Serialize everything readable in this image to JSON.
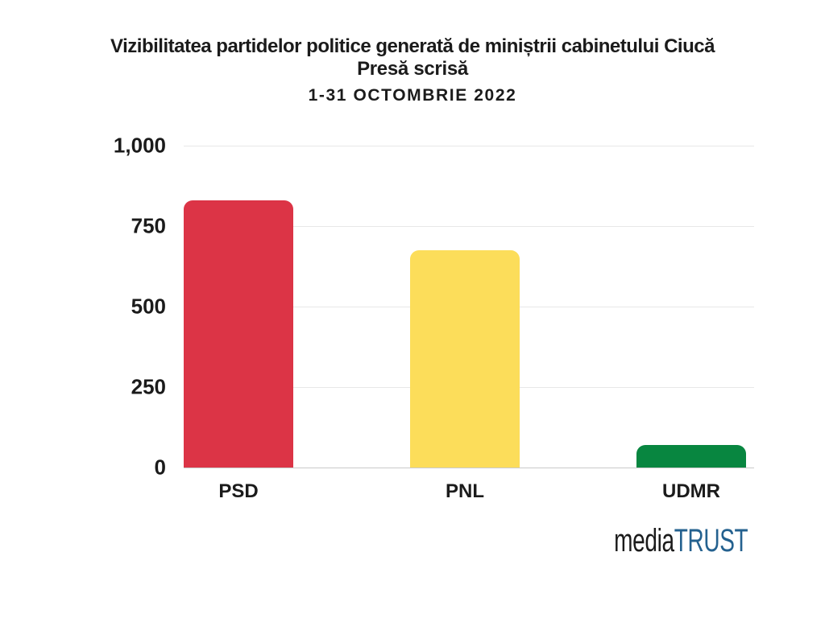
{
  "header": {
    "title_line1": "Vizibilitatea partidelor politice generată de miniștrii cabinetului Ciucă",
    "title_line2": "Presă scrisă",
    "title_line3": "1-31 OCTOMBRIE 2022"
  },
  "chart_data": {
    "type": "bar",
    "title": "Vizibilitatea partidelor politice generată de miniștrii cabinetului Ciucă",
    "subtitle": "Presă scrisă",
    "period": "1-31 OCTOMBRIE 2022",
    "categories": [
      "PSD",
      "PNL",
      "UDMR"
    ],
    "values": [
      830,
      675,
      70
    ],
    "bar_colors": [
      "#dc3446",
      "#fcdd5a",
      "#088640"
    ],
    "ylim": [
      0,
      1000
    ],
    "yticks": [
      0,
      250,
      500,
      750,
      1000
    ],
    "ytick_labels": [
      "0",
      "250",
      "500",
      "750",
      "1,000"
    ],
    "xlabel": "",
    "ylabel": "",
    "grid": "horizontal gridlines on",
    "legend": "none"
  },
  "branding": {
    "logo_media": "media",
    "logo_trust": "TRUST",
    "logo_media_color": "#1b1b1b",
    "logo_trust_color": "#24618f"
  },
  "colors": {
    "background": "#ffffff",
    "text": "#1b1b1b",
    "gridline": "#e7e7e7",
    "axis_baseline": "#c9c9c9"
  }
}
